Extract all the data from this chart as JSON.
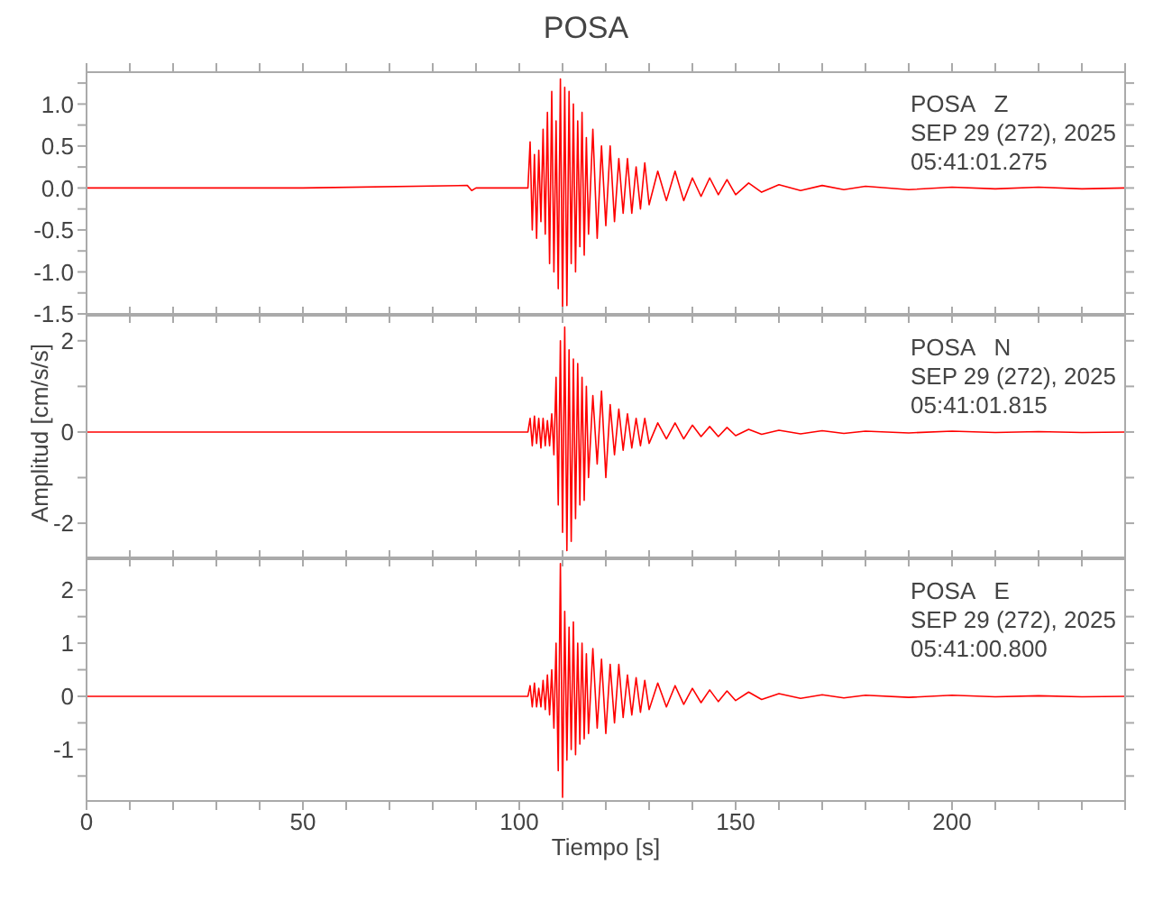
{
  "chart_data": [
    {
      "type": "line",
      "title": "POSA",
      "x": [
        0,
        50,
        88,
        89,
        90,
        100,
        102,
        102.5,
        103,
        103.5,
        104,
        104.5,
        105,
        105.5,
        106,
        106.5,
        107,
        107.5,
        108,
        108.5,
        109,
        109.5,
        110,
        110.5,
        111,
        111.5,
        112,
        112.5,
        113,
        113.5,
        114,
        114.5,
        115,
        115.5,
        116,
        117,
        118,
        119,
        120,
        121,
        122,
        123,
        124,
        125,
        126,
        127,
        128,
        129,
        130,
        132,
        134,
        136,
        138,
        140,
        142,
        144,
        146,
        148,
        150,
        153,
        156,
        160,
        165,
        170,
        175,
        180,
        190,
        200,
        210,
        220,
        230,
        240
      ],
      "series": [
        {
          "color": "#ff0000",
          "values": [
            0,
            0,
            0.03,
            -0.03,
            0,
            0,
            0,
            0.55,
            -0.5,
            0.4,
            -0.6,
            0.45,
            -0.4,
            0.7,
            -0.55,
            0.9,
            -0.9,
            1.15,
            -1.0,
            0.8,
            -1.2,
            1.3,
            -1.45,
            1.2,
            -1.4,
            1.15,
            -0.9,
            1.0,
            -1.0,
            0.8,
            -0.7,
            0.9,
            -0.8,
            0.6,
            -0.55,
            0.7,
            -0.6,
            0.5,
            -0.45,
            0.5,
            -0.4,
            0.35,
            -0.3,
            0.35,
            -0.3,
            0.25,
            -0.25,
            0.3,
            -0.2,
            0.2,
            -0.15,
            0.2,
            -0.15,
            0.12,
            -0.1,
            0.12,
            -0.08,
            0.1,
            -0.08,
            0.06,
            -0.05,
            0.04,
            -0.03,
            0.03,
            -0.02,
            0.02,
            -0.02,
            0.01,
            -0.01,
            0.01,
            -0.01,
            0
          ]
        }
      ],
      "xlim": [
        0,
        240
      ],
      "xticks": [
        0,
        {
          "value": 10,
          "label": null
        },
        {
          "value": 20,
          "label": null
        },
        {
          "value": 30,
          "label": null
        },
        {
          "value": 40,
          "label": null
        },
        50,
        {
          "value": 60,
          "label": null
        },
        {
          "value": 70,
          "label": null
        },
        {
          "value": 80,
          "label": null
        },
        {
          "value": 90,
          "label": null
        },
        100,
        {
          "value": 110,
          "label": null
        },
        {
          "value": 120,
          "label": null
        },
        {
          "value": 130,
          "label": null
        },
        {
          "value": 140,
          "label": null
        },
        150,
        {
          "value": 160,
          "label": null
        },
        {
          "value": 170,
          "label": null
        },
        {
          "value": 180,
          "label": null
        },
        {
          "value": 190,
          "label": null
        },
        200,
        {
          "value": 210,
          "label": null
        },
        {
          "value": 220,
          "label": null
        },
        {
          "value": 230,
          "label": null
        },
        {
          "value": 240,
          "label": null
        }
      ],
      "ylim": [
        -1.5,
        1.38
      ],
      "yticks": [
        {
          "value": -1.5,
          "label": "-1.5"
        },
        {
          "value": -1.25,
          "label": null
        },
        {
          "value": -1,
          "label": "-1.0"
        },
        {
          "value": -0.75,
          "label": null
        },
        {
          "value": -0.5,
          "label": "-0.5"
        },
        {
          "value": -0.25,
          "label": null
        },
        {
          "value": 0,
          "label": "0.0"
        },
        {
          "value": 0.25,
          "label": null
        },
        {
          "value": 0.5,
          "label": "0.5"
        },
        {
          "value": 0.75,
          "label": null
        },
        {
          "value": 1,
          "label": "1.0"
        },
        {
          "value": 1.25,
          "label": null
        }
      ],
      "tick_labels": "y",
      "annotations": [
        "POSA   Z",
        "SEP 29 (272), 2025",
        "05:41:01.275"
      ]
    },
    {
      "type": "line",
      "ylabel": "Amplitud [cm/s/s]",
      "x": [
        0,
        50,
        88,
        89,
        90,
        100,
        102,
        102.5,
        103,
        103.5,
        104,
        104.5,
        105,
        105.5,
        106,
        106.5,
        107,
        107.5,
        108,
        108.5,
        109,
        109.5,
        110,
        110.5,
        111,
        111.5,
        112,
        112.5,
        113,
        113.5,
        114,
        114.5,
        115,
        115.5,
        116,
        117,
        118,
        119,
        120,
        121,
        122,
        123,
        124,
        125,
        126,
        127,
        128,
        129,
        130,
        132,
        134,
        136,
        138,
        140,
        142,
        144,
        146,
        148,
        150,
        153,
        156,
        160,
        165,
        170,
        175,
        180,
        190,
        200,
        210,
        220,
        230,
        240
      ],
      "series": [
        {
          "color": "#ff0000",
          "values": [
            0,
            0,
            0,
            0,
            0,
            0,
            0,
            0.3,
            -0.3,
            0.35,
            -0.25,
            0.3,
            -0.35,
            0.3,
            -0.3,
            0.25,
            -0.3,
            0.4,
            -0.5,
            1.2,
            -1.6,
            2.0,
            -2.2,
            2.3,
            -2.6,
            1.8,
            -2.4,
            1.6,
            -1.9,
            1.5,
            -1.6,
            1.2,
            -1.5,
            1.0,
            -1.0,
            0.8,
            -0.7,
            0.9,
            -1.0,
            0.6,
            -0.5,
            0.5,
            -0.4,
            0.4,
            -0.35,
            0.3,
            -0.3,
            0.3,
            -0.25,
            0.2,
            -0.15,
            0.2,
            -0.15,
            0.15,
            -0.1,
            0.12,
            -0.1,
            0.1,
            -0.08,
            0.06,
            -0.05,
            0.04,
            -0.04,
            0.03,
            -0.03,
            0.02,
            -0.02,
            0.02,
            -0.01,
            0.01,
            -0.01,
            0
          ]
        }
      ],
      "xlim": [
        0,
        240
      ],
      "xticks": [
        0,
        {
          "value": 10,
          "label": null
        },
        {
          "value": 20,
          "label": null
        },
        {
          "value": 30,
          "label": null
        },
        {
          "value": 40,
          "label": null
        },
        50,
        {
          "value": 60,
          "label": null
        },
        {
          "value": 70,
          "label": null
        },
        {
          "value": 80,
          "label": null
        },
        {
          "value": 90,
          "label": null
        },
        100,
        {
          "value": 110,
          "label": null
        },
        {
          "value": 120,
          "label": null
        },
        {
          "value": 130,
          "label": null
        },
        {
          "value": 140,
          "label": null
        },
        150,
        {
          "value": 160,
          "label": null
        },
        {
          "value": 170,
          "label": null
        },
        {
          "value": 180,
          "label": null
        },
        {
          "value": 190,
          "label": null
        },
        200,
        {
          "value": 210,
          "label": null
        },
        {
          "value": 220,
          "label": null
        },
        {
          "value": 230,
          "label": null
        },
        {
          "value": 240,
          "label": null
        }
      ],
      "ylim": [
        -2.75,
        2.55
      ],
      "yticks": [
        -2,
        {
          "value": -1,
          "label": null
        },
        0,
        {
          "value": 1,
          "label": null
        },
        2
      ],
      "tick_labels": "y",
      "annotations": [
        "POSA   N",
        "SEP 29 (272), 2025",
        "05:41:01.815"
      ]
    },
    {
      "type": "line",
      "xlabel": "Tiempo [s]",
      "x": [
        0,
        50,
        88,
        89,
        90,
        100,
        102,
        102.5,
        103,
        103.5,
        104,
        104.5,
        105,
        105.5,
        106,
        106.5,
        107,
        107.5,
        108,
        108.5,
        109,
        109.5,
        110,
        110.5,
        111,
        111.5,
        112,
        112.5,
        113,
        113.5,
        114,
        114.5,
        115,
        115.5,
        116,
        117,
        118,
        119,
        120,
        121,
        122,
        123,
        124,
        125,
        126,
        127,
        128,
        129,
        130,
        132,
        134,
        136,
        138,
        140,
        142,
        144,
        146,
        148,
        150,
        153,
        156,
        160,
        165,
        170,
        175,
        180,
        190,
        200,
        210,
        220,
        230,
        240
      ],
      "series": [
        {
          "color": "#ff0000",
          "values": [
            0,
            0,
            0,
            0,
            0,
            0,
            0,
            0.2,
            -0.2,
            0.25,
            -0.2,
            0.15,
            -0.2,
            0.3,
            -0.25,
            0.4,
            -0.35,
            0.5,
            -0.6,
            1.0,
            -1.4,
            2.5,
            -1.9,
            1.6,
            -1.2,
            1.3,
            -1.0,
            1.4,
            -1.1,
            1.0,
            -0.9,
            1.0,
            -0.8,
            0.8,
            -0.7,
            0.9,
            -0.6,
            0.7,
            -0.7,
            0.6,
            -0.5,
            0.6,
            -0.4,
            0.4,
            -0.35,
            0.35,
            -0.3,
            0.3,
            -0.25,
            0.25,
            -0.2,
            0.2,
            -0.15,
            0.15,
            -0.12,
            0.12,
            -0.1,
            0.1,
            -0.08,
            0.08,
            -0.06,
            0.05,
            -0.04,
            0.03,
            -0.03,
            0.02,
            -0.02,
            0.02,
            -0.01,
            0.01,
            -0.01,
            0
          ]
        }
      ],
      "xlim": [
        0,
        240
      ],
      "xticks": [
        0,
        {
          "value": 10,
          "label": null
        },
        {
          "value": 20,
          "label": null
        },
        {
          "value": 30,
          "label": null
        },
        {
          "value": 40,
          "label": null
        },
        50,
        {
          "value": 60,
          "label": null
        },
        {
          "value": 70,
          "label": null
        },
        {
          "value": 80,
          "label": null
        },
        {
          "value": 90,
          "label": null
        },
        100,
        {
          "value": 110,
          "label": null
        },
        {
          "value": 120,
          "label": null
        },
        {
          "value": 130,
          "label": null
        },
        {
          "value": 140,
          "label": null
        },
        150,
        {
          "value": 160,
          "label": null
        },
        {
          "value": 170,
          "label": null
        },
        {
          "value": 180,
          "label": null
        },
        {
          "value": 190,
          "label": null
        },
        200,
        {
          "value": 210,
          "label": null
        },
        {
          "value": 220,
          "label": null
        },
        {
          "value": 230,
          "label": null
        },
        {
          "value": 240,
          "label": null
        }
      ],
      "ylim": [
        -1.97,
        2.58
      ],
      "yticks": [
        {
          "value": -1.5,
          "label": null
        },
        -1,
        {
          "value": -0.5,
          "label": null
        },
        0,
        {
          "value": 0.5,
          "label": null
        },
        1,
        {
          "value": 1.5,
          "label": null
        },
        2
      ],
      "annotations": [
        "POSA   E",
        "SEP 29 (272), 2025",
        "05:41:00.800"
      ]
    }
  ]
}
